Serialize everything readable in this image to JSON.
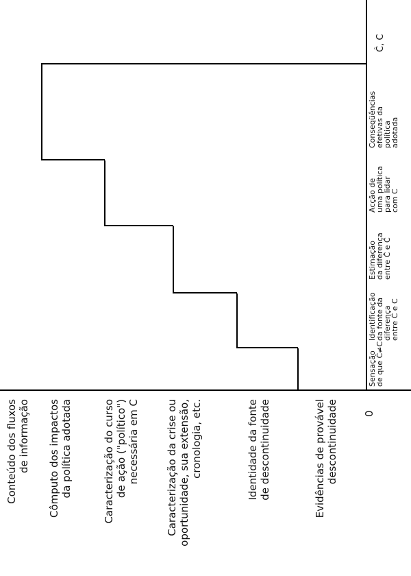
{
  "y_axis_labels": [
    [
      "Conteúdo dos fluxos",
      "de informação"
    ],
    [
      "Cômputo dos impactos",
      "da política adotada"
    ],
    [
      "Caracterização do curso",
      "de ação (\"político\")",
      "necessária em C"
    ],
    [
      "Caracterização da crise ou",
      "oportunidade, sua extensão,",
      "cronologia, etc."
    ],
    [
      "Identidade da fonte",
      "de descontinuidade"
    ],
    [
      "Evidências de provável",
      "descontinuidade"
    ]
  ],
  "origin_label": "0",
  "x_axis_end_label": "Ĉ, C",
  "x_axis_columns": [
    [
      "Sensação",
      "de que Ĉ≠C"
    ],
    [
      "Identificação",
      "da fonte da",
      "diferença",
      "entre Ĉ e C"
    ],
    [
      "Estimação",
      "da diferença",
      "entre Ĉ e C"
    ],
    [
      "Acção de",
      "uma política",
      "para lidar",
      "com C"
    ],
    [
      "Conseqüências",
      "efetivas da",
      "política",
      "adotada"
    ]
  ]
}
